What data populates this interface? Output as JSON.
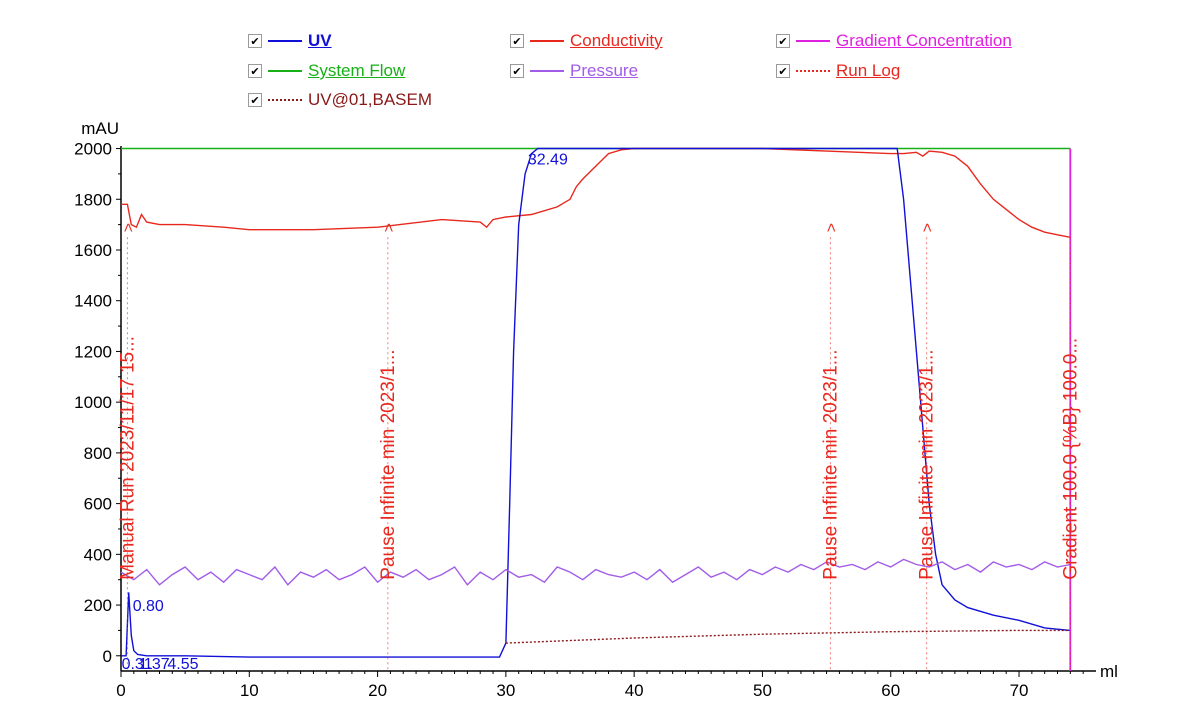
{
  "legend": {
    "items": [
      {
        "key": "uv",
        "label": "UV",
        "color": "#1010d8",
        "style": "solid",
        "checked": true,
        "bold": true
      },
      {
        "key": "conductivity",
        "label": "Conductivity",
        "color": "#e8281e",
        "style": "solid",
        "checked": true
      },
      {
        "key": "gradient",
        "label": "Gradient Concentration",
        "color": "#e020e0",
        "style": "solid",
        "checked": true
      },
      {
        "key": "flow",
        "label": "System Flow",
        "color": "#18b018",
        "style": "solid",
        "checked": true
      },
      {
        "key": "pressure",
        "label": "Pressure",
        "color": "#a25ce8",
        "style": "solid",
        "checked": true
      },
      {
        "key": "runlog",
        "label": "Run Log",
        "color": "#e8281e",
        "style": "dotted",
        "checked": true
      },
      {
        "key": "basem",
        "label": "UV@01,BASEM",
        "color": "#8a1818",
        "style": "dotted",
        "checked": true
      }
    ],
    "check_mark": "✔"
  },
  "chart_data": {
    "type": "line",
    "title": "",
    "xlabel": "ml",
    "ylabel": "mAU",
    "xlim": [
      0,
      76
    ],
    "ylim": [
      -60,
      2010
    ],
    "x_ticks": [
      0,
      10,
      20,
      30,
      40,
      50,
      60,
      70
    ],
    "y_ticks": [
      0,
      200,
      400,
      600,
      800,
      1000,
      1200,
      1400,
      1600,
      1800,
      2000
    ],
    "grid": false,
    "series": [
      {
        "name": "System Flow",
        "color": "#18b018",
        "x": [
          0,
          74
        ],
        "y": [
          2000,
          2000
        ]
      },
      {
        "name": "Conductivity",
        "color": "#e8281e",
        "x": [
          0,
          0.5,
          0.8,
          1.2,
          1.6,
          2,
          3,
          5,
          8,
          10,
          15,
          20,
          25,
          28,
          28.5,
          29,
          30,
          32,
          34,
          35,
          35.5,
          36,
          37,
          38,
          39,
          40,
          45,
          50,
          55,
          60,
          61,
          62,
          62.5,
          63,
          64,
          65,
          66,
          67,
          68,
          69,
          70,
          71,
          72,
          73,
          74
        ],
        "y": [
          1780,
          1780,
          1700,
          1690,
          1740,
          1710,
          1700,
          1700,
          1690,
          1680,
          1680,
          1690,
          1720,
          1710,
          1690,
          1720,
          1730,
          1740,
          1770,
          1800,
          1850,
          1880,
          1930,
          1980,
          1995,
          2000,
          2000,
          2000,
          1990,
          1980,
          1980,
          1985,
          1970,
          1990,
          1985,
          1970,
          1930,
          1860,
          1800,
          1760,
          1720,
          1690,
          1670,
          1660,
          1650
        ]
      },
      {
        "name": "UV",
        "color": "#1010d8",
        "x": [
          0,
          0.4,
          0.6,
          0.8,
          1,
          1.3,
          2,
          5,
          10,
          20,
          29.5,
          30,
          30.3,
          30.6,
          31,
          31.5,
          32,
          32.49,
          33,
          34,
          36,
          40,
          50,
          60,
          60.5,
          61,
          61.5,
          62,
          62.5,
          63,
          63.5,
          64,
          65,
          66,
          68,
          70,
          72,
          74
        ],
        "y": [
          0,
          0,
          250,
          80,
          20,
          5,
          0,
          0,
          -5,
          -5,
          -5,
          50,
          600,
          1200,
          1700,
          1900,
          1980,
          2000,
          2000,
          2000,
          2000,
          2000,
          2000,
          2000,
          2000,
          1800,
          1500,
          1200,
          900,
          600,
          400,
          280,
          220,
          190,
          160,
          140,
          110,
          100
        ]
      },
      {
        "name": "UV@01,BASEM",
        "color": "#8a1818",
        "x": [
          30,
          40,
          50,
          60,
          70,
          74
        ],
        "y": [
          50,
          70,
          85,
          95,
          100,
          100
        ]
      },
      {
        "name": "Pressure",
        "color": "#a25ce8",
        "x": [
          0,
          1,
          2,
          3,
          4,
          5,
          6,
          7,
          8,
          9,
          10,
          11,
          12,
          13,
          14,
          15,
          16,
          17,
          18,
          19,
          20,
          21,
          22,
          23,
          24,
          25,
          26,
          27,
          28,
          29,
          30,
          31,
          32,
          33,
          34,
          35,
          36,
          37,
          38,
          39,
          40,
          41,
          42,
          43,
          44,
          45,
          46,
          47,
          48,
          49,
          50,
          51,
          52,
          53,
          54,
          55,
          56,
          57,
          58,
          59,
          60,
          61,
          62,
          63,
          64,
          65,
          66,
          67,
          68,
          69,
          70,
          71,
          72,
          73,
          74
        ],
        "y": [
          330,
          300,
          340,
          280,
          320,
          350,
          300,
          330,
          290,
          340,
          320,
          300,
          350,
          280,
          330,
          310,
          340,
          300,
          320,
          350,
          290,
          330,
          310,
          340,
          300,
          320,
          350,
          280,
          330,
          300,
          340,
          310,
          320,
          290,
          350,
          330,
          300,
          340,
          320,
          310,
          330,
          300,
          340,
          290,
          320,
          350,
          310,
          330,
          300,
          340,
          320,
          350,
          330,
          360,
          340,
          370,
          350,
          360,
          340,
          370,
          350,
          380,
          360,
          350,
          370,
          340,
          360,
          330,
          370,
          350,
          360,
          340,
          370,
          350,
          360
        ]
      },
      {
        "name": "Gradient Concentration",
        "color": "#e020e0",
        "x": [
          74,
          74
        ],
        "y": [
          -60,
          2000
        ]
      }
    ],
    "peak_labels": [
      {
        "text": "0.80",
        "x": 0.6,
        "y": 250,
        "color": "#1010d8"
      },
      {
        "text": "32.49",
        "x": 32.49,
        "y": 2000,
        "color": "#1010d8"
      },
      {
        "text": "0.31",
        "x": 0.2,
        "y": 0,
        "color": "#1010d8"
      },
      {
        "text": "1.37",
        "x": 1.37,
        "y": 0,
        "color": "#1010d8"
      },
      {
        "text": "4.55",
        "x": 4.55,
        "y": 0,
        "color": "#1010d8"
      }
    ],
    "run_log_events": [
      {
        "x": 0.5,
        "text": "Manual Run 2023/11/17 15...",
        "marker": ">"
      },
      {
        "x": 20.8,
        "text": "Pause Infinite min 2023/1...",
        "marker": ">"
      },
      {
        "x": 55.3,
        "text": "Pause Infinite min 2023/1...",
        "marker": ">"
      },
      {
        "x": 62.8,
        "text": "Pause Infinite min 2023/1...",
        "marker": ">"
      },
      {
        "x": 74,
        "text": "Gradient 100.0 {%B} 100.0...",
        "marker": ""
      }
    ]
  }
}
